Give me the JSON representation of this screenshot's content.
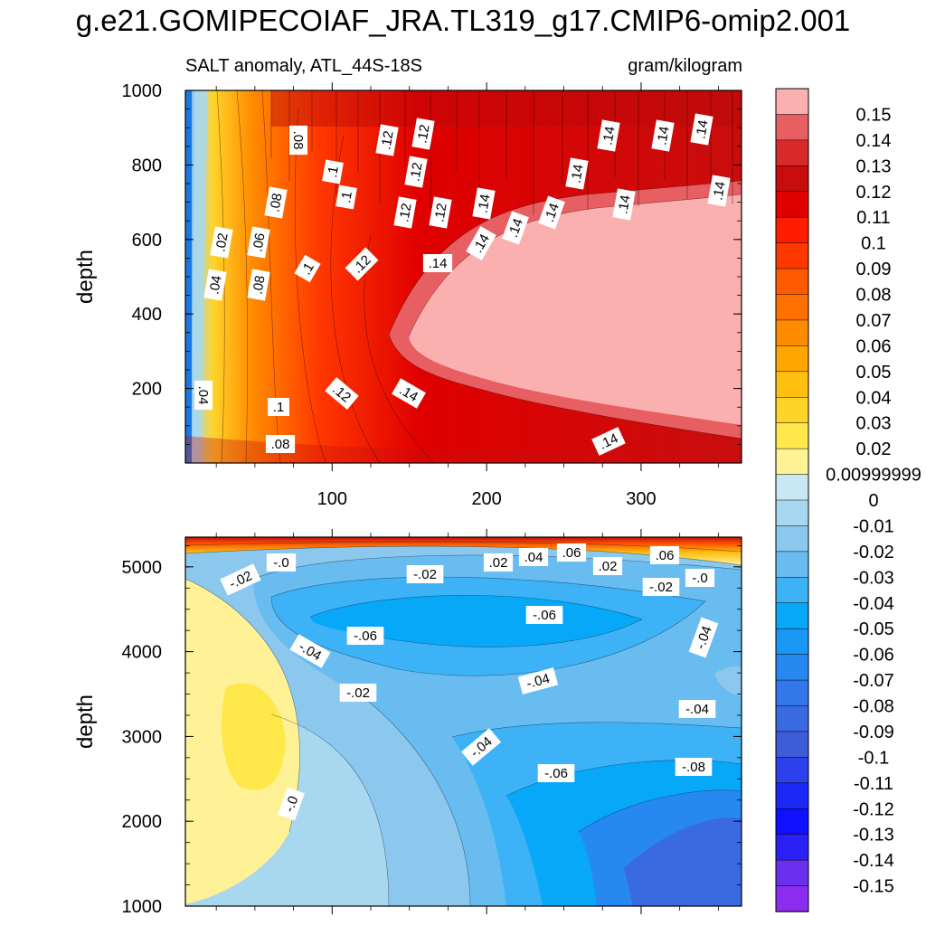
{
  "title": "g.e21.GOMIPECOIAF_JRA.TL319_g17.CMIP6-omip2.001",
  "subtitle_left": "SALT anomaly, ATL_44S-18S",
  "subtitle_right": "gram/kilogram",
  "chart_data": [
    {
      "type": "heatmap",
      "panel": "upper",
      "ylabel": "depth",
      "xlabel": "",
      "xlim": [
        5,
        365
      ],
      "ylim": [
        1000,
        0
      ],
      "xticks": [
        100,
        200,
        300
      ],
      "yticks": [
        200,
        400,
        600,
        800,
        1000
      ],
      "contour_labels": [
        ".02",
        ".04",
        ".04",
        ".06",
        ".08",
        ".08",
        ".08",
        ".08",
        ".1",
        ".1",
        ".1",
        ".1",
        ".12",
        ".12",
        ".12",
        ".12",
        ".12",
        ".12",
        ".12",
        ".14",
        ".14",
        ".14",
        ".14",
        ".14",
        ".14",
        ".14",
        ".14",
        ".14",
        ".14",
        ".14",
        ".14",
        ".14"
      ]
    },
    {
      "type": "heatmap",
      "panel": "lower",
      "ylabel": "depth",
      "xlabel": "",
      "xlim": [
        5,
        365
      ],
      "ylim": [
        5350,
        1000
      ],
      "xticks": [
        100,
        200,
        300
      ],
      "yticks": [
        1000,
        2000,
        3000,
        4000,
        5000
      ],
      "contour_labels": [
        "-.0",
        "-.0",
        "-.0",
        "-.02",
        "-.02",
        "-.02",
        "-.02",
        ".02",
        ".02",
        ".04",
        ".06",
        ".06",
        "-.04",
        "-.04",
        "-.04",
        "-.04",
        "-.04",
        "-.06",
        "-.06",
        "-.06",
        "-.08"
      ]
    }
  ],
  "colorbar": {
    "labels": [
      "0.15",
      "0.14",
      "0.13",
      "0.12",
      "0.11",
      "0.1",
      "0.09",
      "0.08",
      "0.07",
      "0.06",
      "0.05",
      "0.04",
      "0.03",
      "0.02",
      "0.00999999",
      "0",
      "-0.01",
      "-0.02",
      "-0.03",
      "-0.04",
      "-0.05",
      "-0.06",
      "-0.07",
      "-0.08",
      "-0.09",
      "-0.1",
      "-0.11",
      "-0.12",
      "-0.13",
      "-0.14",
      "-0.15"
    ],
    "colors": [
      "#fbb0b0",
      "#e85f63",
      "#d82a2a",
      "#c80d0d",
      "#e00000",
      "#ff1d00",
      "#ff3800",
      "#ff5a00",
      "#ff7000",
      "#ff8c00",
      "#ffa600",
      "#ffbf10",
      "#ffd42a",
      "#ffe84a",
      "#fff196",
      "#c8e8f4",
      "#a8d8f0",
      "#8cc8ee",
      "#68bcf0",
      "#3eb2f6",
      "#08a8f8",
      "#1a98f6",
      "#2888f2",
      "#3278ea",
      "#3a6ae0",
      "#3c5cd8",
      "#2c40ee",
      "#1c28f6",
      "#1010ff",
      "#2a20f6",
      "#6a30ee",
      "#8c2cee"
    ]
  }
}
